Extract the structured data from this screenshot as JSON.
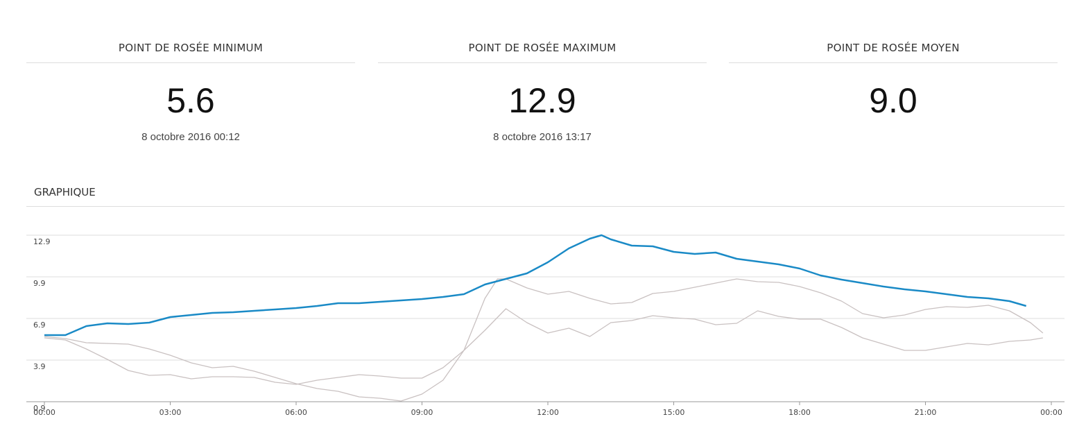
{
  "cards": [
    {
      "title": "POINT DE ROSÉE MINIMUM",
      "value": "5.6",
      "date": "8 octobre 2016 00:12"
    },
    {
      "title": "POINT DE ROSÉE MAXIMUM",
      "value": "12.9",
      "date": "8 octobre 2016 13:17"
    },
    {
      "title": "POINT DE ROSÉE MOYEN",
      "value": "9.0"
    }
  ],
  "section_title": "GRAPHIQUE",
  "chart_data": {
    "type": "line",
    "xlim": [
      0,
      24
    ],
    "ylim": [
      0.9,
      12.9
    ],
    "yticks": [
      0.9,
      3.9,
      6.9,
      9.9,
      12.9
    ],
    "xticks": [
      {
        "value": 0,
        "label": "00:00"
      },
      {
        "value": 3,
        "label": "03:00"
      },
      {
        "value": 6,
        "label": "06:00"
      },
      {
        "value": 9,
        "label": "09:00"
      },
      {
        "value": 12,
        "label": "12:00"
      },
      {
        "value": 15,
        "label": "15:00"
      },
      {
        "value": 18,
        "label": "18:00"
      },
      {
        "value": 21,
        "label": "21:00"
      },
      {
        "value": 24,
        "label": "00:00"
      }
    ],
    "grid": true,
    "series": [
      {
        "color": "#c9c1c1",
        "x": [
          0,
          0.5,
          1,
          2,
          2.5,
          3,
          3.5,
          4,
          4.5,
          5,
          5.5,
          6,
          6.5,
          7,
          7.5,
          8,
          8.5,
          9,
          9.5,
          10,
          10.5,
          10.8,
          11,
          11.5,
          12,
          12.5,
          13,
          13.5,
          14,
          14.5,
          15,
          15.5,
          16,
          16.5,
          17,
          17.5,
          18,
          18.5,
          19,
          19.5,
          20,
          20.5,
          21,
          21.5,
          22,
          22.5,
          23,
          23.5,
          23.8
        ],
        "values": [
          5.6,
          5.45,
          5.15,
          5.05,
          4.7,
          4.25,
          3.7,
          3.35,
          3.45,
          3.1,
          2.65,
          2.2,
          1.85,
          1.65,
          1.25,
          1.15,
          0.95,
          1.45,
          2.45,
          4.6,
          8.35,
          9.75,
          9.75,
          9.1,
          8.65,
          8.85,
          8.35,
          7.95,
          8.05,
          8.7,
          8.85,
          9.15,
          9.45,
          9.75,
          9.55,
          9.5,
          9.2,
          8.75,
          8.15,
          7.25,
          6.95,
          7.15,
          7.55,
          7.75,
          7.7,
          7.85,
          7.45,
          6.6,
          5.85
        ]
      },
      {
        "color": "#c9c1c1",
        "x": [
          0,
          0.5,
          1,
          1.5,
          2,
          2.5,
          3,
          3.5,
          4,
          4.5,
          5,
          5.5,
          6,
          6.5,
          7,
          7.5,
          8,
          8.5,
          9,
          9.5,
          10,
          10.5,
          11,
          11.5,
          12,
          12.5,
          13,
          13.5,
          14,
          14.5,
          15,
          15.5,
          16,
          16.5,
          17,
          17.5,
          18,
          18.5,
          19,
          19.5,
          20,
          20.5,
          21,
          21.5,
          22,
          22.5,
          23,
          23.5,
          23.8
        ],
        "values": [
          5.5,
          5.35,
          4.7,
          3.95,
          3.15,
          2.8,
          2.85,
          2.55,
          2.7,
          2.7,
          2.65,
          2.3,
          2.15,
          2.45,
          2.65,
          2.85,
          2.75,
          2.6,
          2.6,
          3.35,
          4.6,
          6.05,
          7.6,
          6.6,
          5.85,
          6.2,
          5.6,
          6.6,
          6.75,
          7.1,
          6.95,
          6.85,
          6.45,
          6.55,
          7.45,
          7.05,
          6.85,
          6.85,
          6.25,
          5.5,
          5.05,
          4.6,
          4.6,
          4.85,
          5.1,
          5.0,
          5.25,
          5.35,
          5.5
        ]
      },
      {
        "color": "#1a8ac6",
        "x": [
          0,
          0.5,
          1,
          1.5,
          2,
          2.5,
          3,
          3.5,
          4,
          4.5,
          5,
          5.5,
          6,
          6.5,
          7,
          7.5,
          8,
          8.5,
          9,
          9.5,
          10,
          10.5,
          11,
          11.5,
          12,
          12.5,
          13,
          13.28,
          13.5,
          14,
          14.5,
          15,
          15.5,
          16,
          16.5,
          17,
          17.5,
          18,
          18.5,
          19,
          19.5,
          20,
          20.5,
          21,
          21.5,
          22,
          22.5,
          23,
          23.4
        ],
        "values": [
          5.7,
          5.7,
          6.35,
          6.55,
          6.5,
          6.6,
          7.0,
          7.15,
          7.3,
          7.35,
          7.45,
          7.55,
          7.65,
          7.8,
          8.0,
          8.0,
          8.1,
          8.2,
          8.3,
          8.45,
          8.65,
          9.35,
          9.75,
          10.15,
          10.95,
          11.95,
          12.65,
          12.9,
          12.6,
          12.15,
          12.1,
          11.7,
          11.55,
          11.65,
          11.2,
          11.0,
          10.8,
          10.5,
          10.0,
          9.7,
          9.45,
          9.2,
          9.0,
          8.85,
          8.65,
          8.45,
          8.35,
          8.15,
          7.8
        ]
      }
    ]
  }
}
